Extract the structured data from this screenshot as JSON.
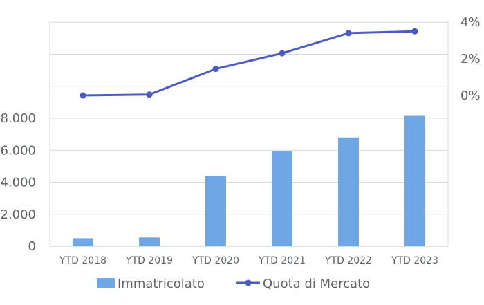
{
  "chart_data": {
    "type": "bar",
    "categories": [
      "YTD 2018",
      "YTD 2019",
      "YTD 2020",
      "YTD 2021",
      "YTD 2022",
      "YTD 2023"
    ],
    "series": [
      {
        "name": "Immatricolato",
        "type": "bar",
        "axis": "left",
        "color": "#6ea6e6",
        "values": [
          500,
          550,
          4400,
          5950,
          6800,
          8150
        ]
      },
      {
        "name": "Quota di Mercato",
        "type": "line",
        "axis": "right",
        "color": "#4a5cc4",
        "values": [
          0.0,
          0.05,
          1.45,
          2.3,
          3.4,
          3.5
        ]
      }
    ],
    "yleft": {
      "ticks": [
        "0",
        "2.000",
        "4.000",
        "6.000",
        "8.000"
      ],
      "ylim": [
        0,
        8000
      ]
    },
    "yright": {
      "ticks": [
        "0%",
        "2%",
        "4%"
      ],
      "ylim": [
        0,
        4
      ]
    },
    "grid": true,
    "legend": "bottom"
  }
}
